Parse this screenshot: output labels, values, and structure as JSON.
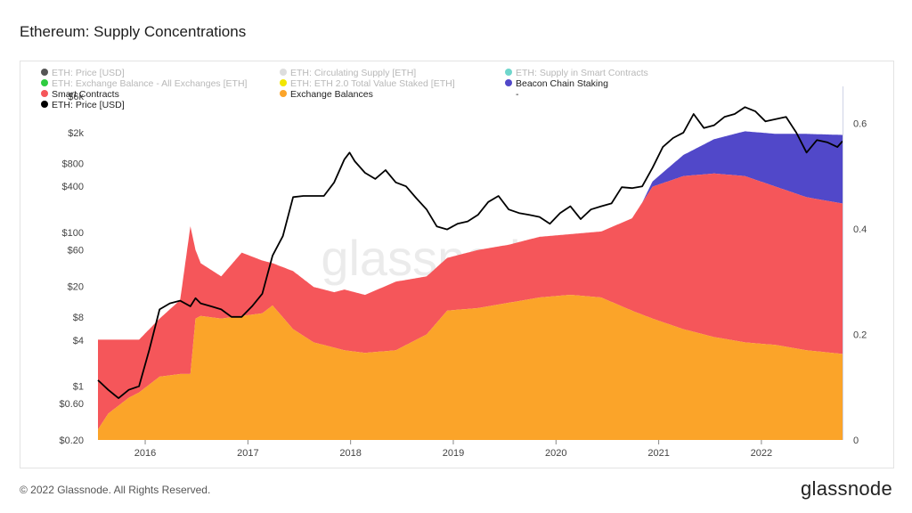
{
  "title": "Ethereum: Supply Concentrations",
  "footer": {
    "copyright": "© 2022 Glassnode. All Rights Reserved.",
    "logo": "glassnode"
  },
  "watermark": "glassnode",
  "colors": {
    "exchange": "#fba429",
    "smart_contracts": "#f5565a",
    "staking": "#5148c9",
    "price": "#000000"
  },
  "legend": [
    {
      "label": "ETH: Price [USD]",
      "color": "#555555",
      "muted": true
    },
    {
      "label": "ETH: Circulating Supply [ETH]",
      "color": "#dddddd",
      "muted": true
    },
    {
      "label": "ETH: Supply in Smart Contracts",
      "color": "#6fd6cc",
      "muted": true
    },
    {
      "label": "ETH: Exchange Balance - All Exchanges [ETH]",
      "color": "#2ecc40",
      "muted": true
    },
    {
      "label": "ETH: ETH 2.0 Total Value Staked [ETH]",
      "color": "#f2e600",
      "muted": true
    },
    {
      "label": "Beacon Chain Staking",
      "color": "#5148c9",
      "muted": false
    },
    {
      "label": "Smart Contracts",
      "color": "#f5565a",
      "muted": false
    },
    {
      "label": "Exchange Balances",
      "color": "#fba429",
      "muted": false
    },
    {
      "label": "-",
      "color": "",
      "muted": false
    },
    {
      "label": "ETH: Price [USD]",
      "color": "#000000",
      "muted": false
    }
  ],
  "chart_data": {
    "type": "area",
    "x_ticks": [
      "2016",
      "2017",
      "2018",
      "2019",
      "2020",
      "2021",
      "2022"
    ],
    "x_range": [
      2015.6,
      2022.85
    ],
    "left_axis": {
      "scale": "log",
      "ticks": [
        "$6k",
        "$2k",
        "$800",
        "$400",
        "$100",
        "$60",
        "$20",
        "$8",
        "$4",
        "$1",
        "$0.60",
        "$0.20"
      ],
      "tick_values": [
        6000,
        2000,
        800,
        400,
        100,
        60,
        20,
        8,
        4,
        1,
        0.6,
        0.2
      ],
      "range": [
        0.2,
        8000
      ]
    },
    "right_axis": {
      "ticks": [
        "0",
        "0.2",
        "0.4",
        "0.6"
      ],
      "tick_values": [
        0,
        0.2,
        0.4,
        0.6
      ],
      "range": [
        0,
        0.67
      ]
    },
    "stack_series": [
      {
        "name": "Exchange Balances",
        "x": [
          2015.6,
          2015.7,
          2015.9,
          2016.0,
          2016.2,
          2016.4,
          2016.5,
          2016.55,
          2016.6,
          2016.8,
          2017.0,
          2017.2,
          2017.3,
          2017.5,
          2017.7,
          2017.9,
          2018.0,
          2018.2,
          2018.5,
          2018.8,
          2019.0,
          2019.3,
          2019.6,
          2019.9,
          2020.2,
          2020.5,
          2020.8,
          2021.0,
          2021.3,
          2021.6,
          2021.9,
          2022.2,
          2022.5,
          2022.85
        ],
        "values": [
          0.02,
          0.05,
          0.08,
          0.09,
          0.12,
          0.125,
          0.125,
          0.23,
          0.235,
          0.23,
          0.235,
          0.24,
          0.255,
          0.21,
          0.185,
          0.175,
          0.17,
          0.165,
          0.17,
          0.2,
          0.245,
          0.25,
          0.26,
          0.27,
          0.275,
          0.27,
          0.245,
          0.23,
          0.21,
          0.195,
          0.185,
          0.18,
          0.17,
          0.163
        ]
      },
      {
        "name": "Smart Contracts",
        "x": [
          2015.6,
          2015.7,
          2015.9,
          2016.0,
          2016.2,
          2016.4,
          2016.5,
          2016.55,
          2016.6,
          2016.8,
          2017.0,
          2017.2,
          2017.3,
          2017.5,
          2017.7,
          2017.9,
          2018.0,
          2018.2,
          2018.5,
          2018.8,
          2019.0,
          2019.3,
          2019.6,
          2019.9,
          2020.2,
          2020.5,
          2020.8,
          2021.0,
          2021.3,
          2021.6,
          2021.9,
          2022.2,
          2022.5,
          2022.85
        ],
        "values": [
          0.17,
          0.14,
          0.11,
          0.1,
          0.11,
          0.14,
          0.28,
          0.13,
          0.1,
          0.08,
          0.12,
          0.1,
          0.08,
          0.11,
          0.105,
          0.105,
          0.115,
          0.11,
          0.13,
          0.11,
          0.1,
          0.11,
          0.11,
          0.115,
          0.115,
          0.125,
          0.175,
          0.25,
          0.29,
          0.31,
          0.315,
          0.3,
          0.29,
          0.285
        ]
      },
      {
        "name": "Beacon Chain Staking",
        "x": [
          2020.9,
          2021.0,
          2021.3,
          2021.6,
          2021.9,
          2022.2,
          2022.5,
          2022.85
        ],
        "values": [
          0.0,
          0.01,
          0.04,
          0.065,
          0.085,
          0.1,
          0.12,
          0.13
        ]
      }
    ],
    "line_series": {
      "name": "ETH: Price [USD]",
      "x": [
        2015.6,
        2015.7,
        2015.8,
        2015.9,
        2016.0,
        2016.1,
        2016.2,
        2016.3,
        2016.4,
        2016.5,
        2016.55,
        2016.6,
        2016.7,
        2016.8,
        2016.9,
        2017.0,
        2017.1,
        2017.2,
        2017.3,
        2017.4,
        2017.5,
        2017.6,
        2017.7,
        2017.8,
        2017.9,
        2018.0,
        2018.05,
        2018.1,
        2018.2,
        2018.3,
        2018.4,
        2018.5,
        2018.6,
        2018.7,
        2018.8,
        2018.9,
        2019.0,
        2019.1,
        2019.2,
        2019.3,
        2019.4,
        2019.5,
        2019.6,
        2019.7,
        2019.8,
        2019.9,
        2020.0,
        2020.1,
        2020.2,
        2020.3,
        2020.4,
        2020.5,
        2020.6,
        2020.7,
        2020.8,
        2020.9,
        2021.0,
        2021.1,
        2021.2,
        2021.3,
        2021.4,
        2021.5,
        2021.6,
        2021.7,
        2021.8,
        2021.9,
        2022.0,
        2022.1,
        2022.2,
        2022.3,
        2022.4,
        2022.5,
        2022.6,
        2022.7,
        2022.8,
        2022.85
      ],
      "values": [
        1.2,
        0.9,
        0.7,
        0.9,
        1.0,
        3.0,
        10.0,
        12.0,
        13.0,
        11.0,
        14.0,
        12.0,
        11.0,
        10.0,
        8.0,
        8.0,
        11.0,
        16.0,
        50.0,
        90.0,
        290.0,
        300.0,
        300.0,
        300.0,
        450.0,
        900.0,
        1100.0,
        850.0,
        600.0,
        500.0,
        650.0,
        450.0,
        400.0,
        280.0,
        200.0,
        120.0,
        110.0,
        130.0,
        140.0,
        170.0,
        250.0,
        300.0,
        200.0,
        180.0,
        170.0,
        160.0,
        130.0,
        180.0,
        220.0,
        150.0,
        200.0,
        220.0,
        240.0,
        390.0,
        380.0,
        400.0,
        700.0,
        1300.0,
        1700.0,
        2000.0,
        3500.0,
        2300.0,
        2500.0,
        3200.0,
        3500.0,
        4300.0,
        3800.0,
        2800.0,
        3000.0,
        3200.0,
        2000.0,
        1100.0,
        1600.0,
        1500.0,
        1300.0,
        1550.0
      ]
    }
  }
}
